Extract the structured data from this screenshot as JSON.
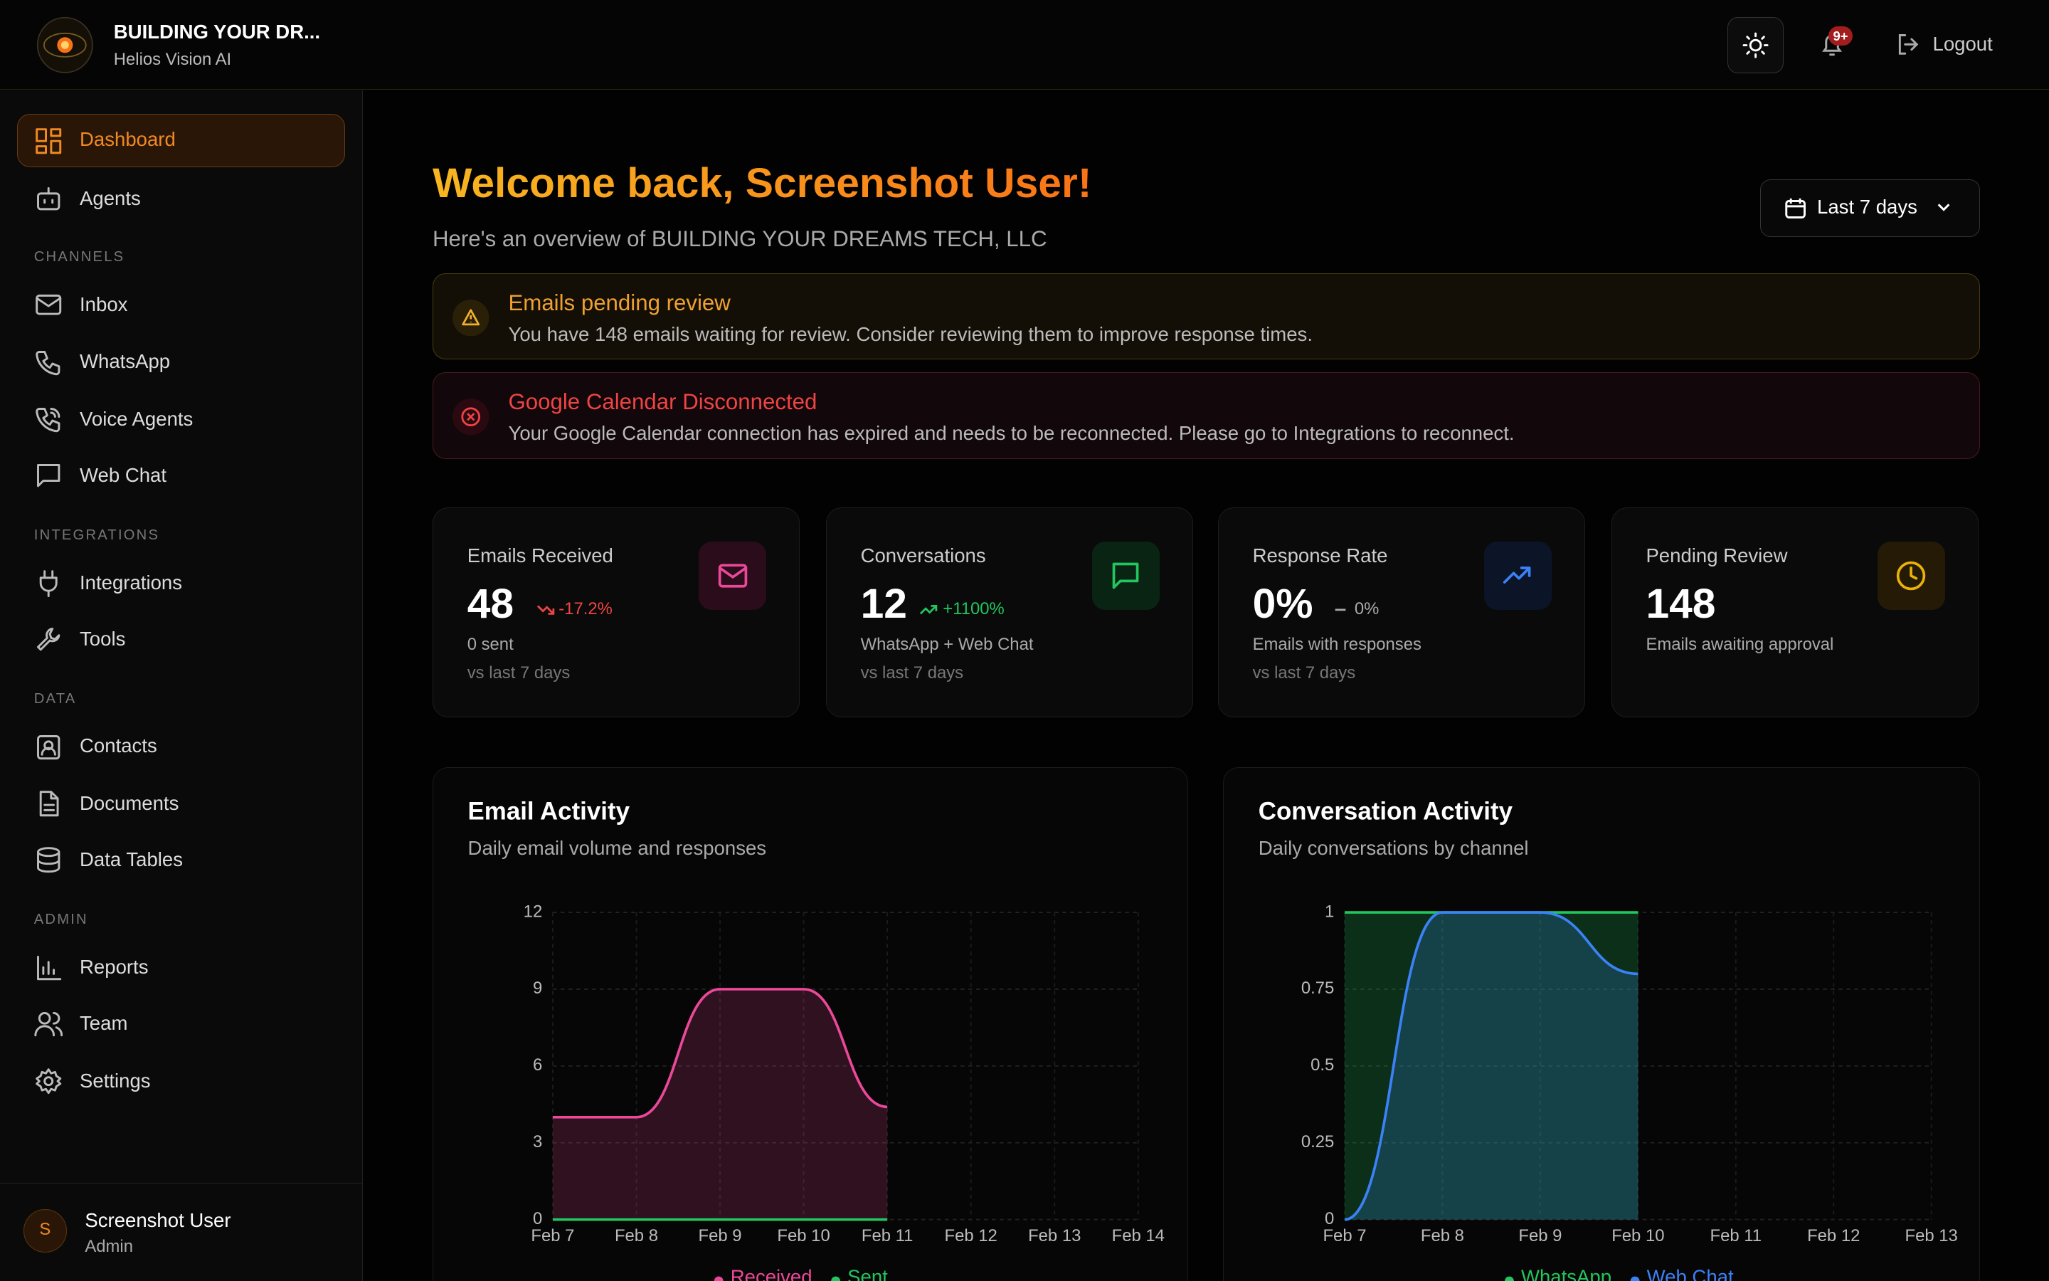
{
  "brand": {
    "name": "BUILDING YOUR DR...",
    "subtitle": "Helios Vision AI"
  },
  "topbar": {
    "notification_badge": "9+",
    "logout": "Logout"
  },
  "sidebar": {
    "items": [
      "Dashboard",
      "Agents"
    ],
    "sections": [
      {
        "title": "CHANNELS",
        "items": [
          "Inbox",
          "WhatsApp",
          "Voice Agents",
          "Web Chat"
        ]
      },
      {
        "title": "INTEGRATIONS",
        "items": [
          "Integrations",
          "Tools"
        ]
      },
      {
        "title": "DATA",
        "items": [
          "Contacts",
          "Documents",
          "Data Tables"
        ]
      },
      {
        "title": "ADMIN",
        "items": [
          "Reports",
          "Team",
          "Settings"
        ]
      }
    ]
  },
  "user": {
    "initial": "S",
    "name": "Screenshot User",
    "role": "Admin"
  },
  "header": {
    "title": "Welcome back, Screenshot User!",
    "subtitle": "Here's an overview of BUILDING YOUR DREAMS TECH, LLC",
    "date_range": "Last 7 days"
  },
  "alerts": [
    {
      "title": "Emails pending review",
      "text": "You have 148 emails waiting for review. Consider reviewing them to improve response times."
    },
    {
      "title": "Google Calendar Disconnected",
      "text": "Your Google Calendar connection has expired and needs to be reconnected. Please go to Integrations to reconnect."
    }
  ],
  "stats": [
    {
      "label": "Emails Received",
      "value": 48,
      "change": "-17.2%",
      "note": "0 sent",
      "period": "vs last 7 days"
    },
    {
      "label": "Conversations",
      "value": 12,
      "change": "+1100%",
      "note": "WhatsApp + Web Chat",
      "period": "vs last 7 days"
    },
    {
      "label": "Response Rate",
      "value": "0%",
      "change": "0%",
      "note": "Emails with responses",
      "period": "vs last 7 days"
    },
    {
      "label": "Pending Review",
      "value": 148,
      "note": "Emails awaiting approval"
    }
  ],
  "chart_data": [
    {
      "type": "area",
      "title": "Email Activity",
      "subtitle": "Daily email volume and responses",
      "categories": [
        "Feb 7",
        "Feb 8",
        "Feb 9",
        "Feb 10",
        "Feb 11",
        "Feb 12",
        "Feb 13",
        "Feb 14"
      ],
      "series": [
        {
          "name": "Received",
          "color": "#ec4899",
          "values": [
            4,
            4,
            9,
            9,
            4.4,
            null,
            null,
            null
          ]
        },
        {
          "name": "Sent",
          "color": "#22c55e",
          "values": [
            0,
            0,
            0,
            0,
            0,
            null,
            null,
            null
          ]
        }
      ],
      "ylim": [
        0,
        12
      ],
      "yticks": [
        0,
        3,
        6,
        9,
        12
      ],
      "grid": true
    },
    {
      "type": "area",
      "title": "Conversation Activity",
      "subtitle": "Daily conversations by channel",
      "categories": [
        "Feb 7",
        "Feb 8",
        "Feb 9",
        "Feb 10",
        "Feb 11",
        "Feb 12",
        "Feb 13"
      ],
      "series": [
        {
          "name": "WhatsApp",
          "color": "#22c55e",
          "values": [
            1,
            1,
            1,
            1,
            null,
            null,
            null
          ]
        },
        {
          "name": "Web Chat",
          "color": "#3b82f6",
          "values": [
            0,
            1,
            1,
            0.8,
            null,
            null,
            null
          ]
        }
      ],
      "ylim": [
        0,
        1
      ],
      "yticks": [
        0,
        0.25,
        0.5,
        0.75,
        1
      ],
      "grid": true
    }
  ]
}
